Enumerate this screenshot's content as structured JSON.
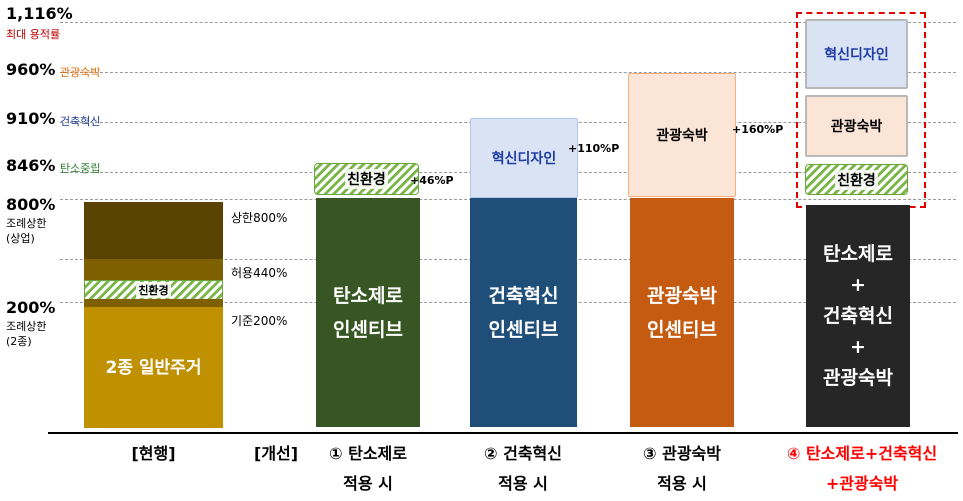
{
  "levels": [
    {
      "pct": "1,116%",
      "sub": "최대 용적률",
      "sub_color": "#c00000"
    },
    {
      "pct": "960%",
      "sub": "관광숙박",
      "sub_color": "#e36c09"
    },
    {
      "pct": "910%",
      "sub": "건축혁신",
      "sub_color": "#1f3d99"
    },
    {
      "pct": "846%",
      "sub": "탄소중립",
      "sub_color": "#2e7d32"
    },
    {
      "pct": "800%",
      "desc_1": "조례상한",
      "desc_2": "(상업)"
    },
    {
      "pct": "200%",
      "desc_1": "조례상한",
      "desc_2": "(2종)"
    }
  ],
  "current": {
    "upper_label": "상한800%",
    "allowed_label": "허용440%",
    "base_label": "기준200%",
    "eco_label": "친환경",
    "base_text": "2종 일반주거",
    "x_label": "[현행]"
  },
  "columns": [
    {
      "bar_line1": "탄소제로",
      "bar_line2": "인센티브",
      "bar_color": "#375623",
      "top_label": "친환경",
      "increment": "+46%P",
      "x_prefix": "[개선]",
      "x_line1": "① 탄소제로",
      "x_line2": "적용 시"
    },
    {
      "bar_line1": "건축혁신",
      "bar_line2": "인센티브",
      "bar_color": "#1f4e79",
      "top_label": "혁신디자인",
      "increment": "+110%P",
      "x_line1": "② 건축혁신",
      "x_line2": "적용 시"
    },
    {
      "bar_line1": "관광숙박",
      "bar_line2": "인센티브",
      "bar_color": "#c55a11",
      "top_label": "관광숙박",
      "increment": "+160%P",
      "x_line1": "③ 관광숙박",
      "x_line2": "적용 시"
    },
    {
      "bar_line1": "탄소제로",
      "bar_line2": "+",
      "bar_line3": "건축혁신",
      "bar_line4": "+",
      "bar_line5": "관광숙박",
      "bar_color": "#262626",
      "stack_top": "혁신디자인",
      "stack_mid": "관광숙박",
      "stack_bottom": "친환경",
      "x_line1": "④ 탄소제로+건축혁신",
      "x_line2": "+관광숙박",
      "x_color": "#ff0000"
    }
  ],
  "colors": {
    "base_gold": "#bf9000",
    "upper_brown": "#5a4300",
    "mid_brown": "#7f6000",
    "box_blue": "#dae3f3",
    "box_peach": "#fbe5d6",
    "accent_red": "#ff0000"
  }
}
